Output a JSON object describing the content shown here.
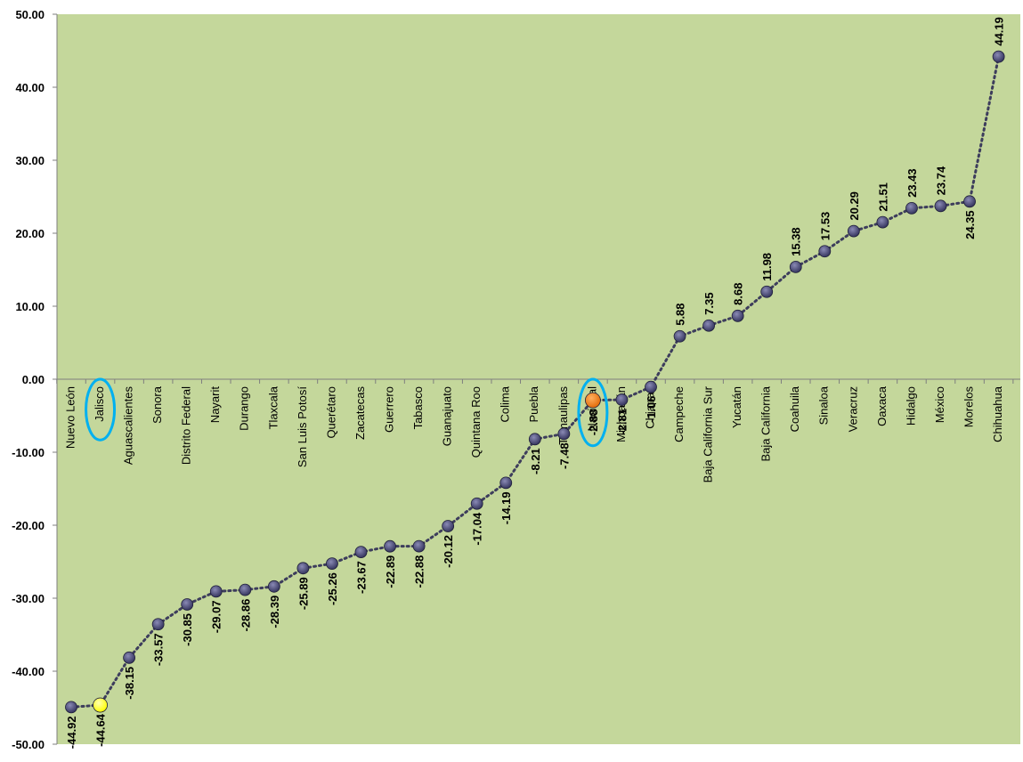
{
  "chart_data": {
    "type": "line",
    "title": "",
    "xlabel": "",
    "ylabel": "",
    "ylim": [
      -50,
      50
    ],
    "yticks": [
      "50.00",
      "40.00",
      "30.00",
      "20.00",
      "10.00",
      "0.00",
      "-10.00",
      "-20.00",
      "-30.00",
      "-40.00",
      "-50.00"
    ],
    "grid": false,
    "legend": "none",
    "colors": {
      "plot_bg": "#c4d79b",
      "line": "#3d3d5c",
      "marker": "#35355e",
      "highlight_jalisco": "#ffff00",
      "highlight_nacional": "#e36c09",
      "circle": "#00b0f0"
    },
    "categories": [
      "Nuevo León",
      "Jalisco",
      "Aguascalientes",
      "Sonora",
      "Distrito Federal",
      "Nayarit",
      "Durango",
      "Tlaxcala",
      "San Luis Potosí",
      "Querétaro",
      "Zacatecas",
      "Guerrero",
      "Tabasco",
      "Guanajuato",
      "Quintana  Roo",
      "Colima",
      "Puebla",
      "Tamaulipas",
      "Nacional",
      "Michoacán",
      "Chiapas",
      "Campeche",
      "Baja California Sur",
      "Yucatán",
      "Baja California",
      "Coahuila",
      "Sinaloa",
      "Veracruz",
      "Oaxaca",
      "Hidalgo",
      "México",
      "Morelos",
      "Chihuahua"
    ],
    "values": [
      -44.92,
      -44.64,
      -38.15,
      -33.57,
      -30.85,
      -29.07,
      -28.86,
      -28.39,
      -25.89,
      -25.26,
      -23.67,
      -22.89,
      -22.88,
      -20.12,
      -17.04,
      -14.19,
      -8.21,
      -7.48,
      -2.88,
      -2.81,
      -1.06,
      5.88,
      7.35,
      8.68,
      11.98,
      15.38,
      17.53,
      20.29,
      21.51,
      23.43,
      23.74,
      24.35,
      44.19
    ],
    "value_labels": [
      "-44.92",
      "-44.64",
      "-38.15",
      "-33.57",
      "-30.85",
      "-29.07",
      "-28.86",
      "-28.39",
      "-25.89",
      "-25.26",
      "-23.67",
      "-22.89",
      "-22.88",
      "-20.12",
      "-17.04",
      "-14.19",
      "-8.21",
      "-7.48",
      "-2.88",
      "-2.81",
      "-1.06",
      "5.88",
      "7.35",
      "8.68",
      "11.98",
      "15.38",
      "17.53",
      "20.29",
      "21.51",
      "23.43",
      "23.74",
      "24.35",
      "44.19"
    ],
    "highlighted": [
      "Jalisco",
      "Nacional"
    ]
  }
}
